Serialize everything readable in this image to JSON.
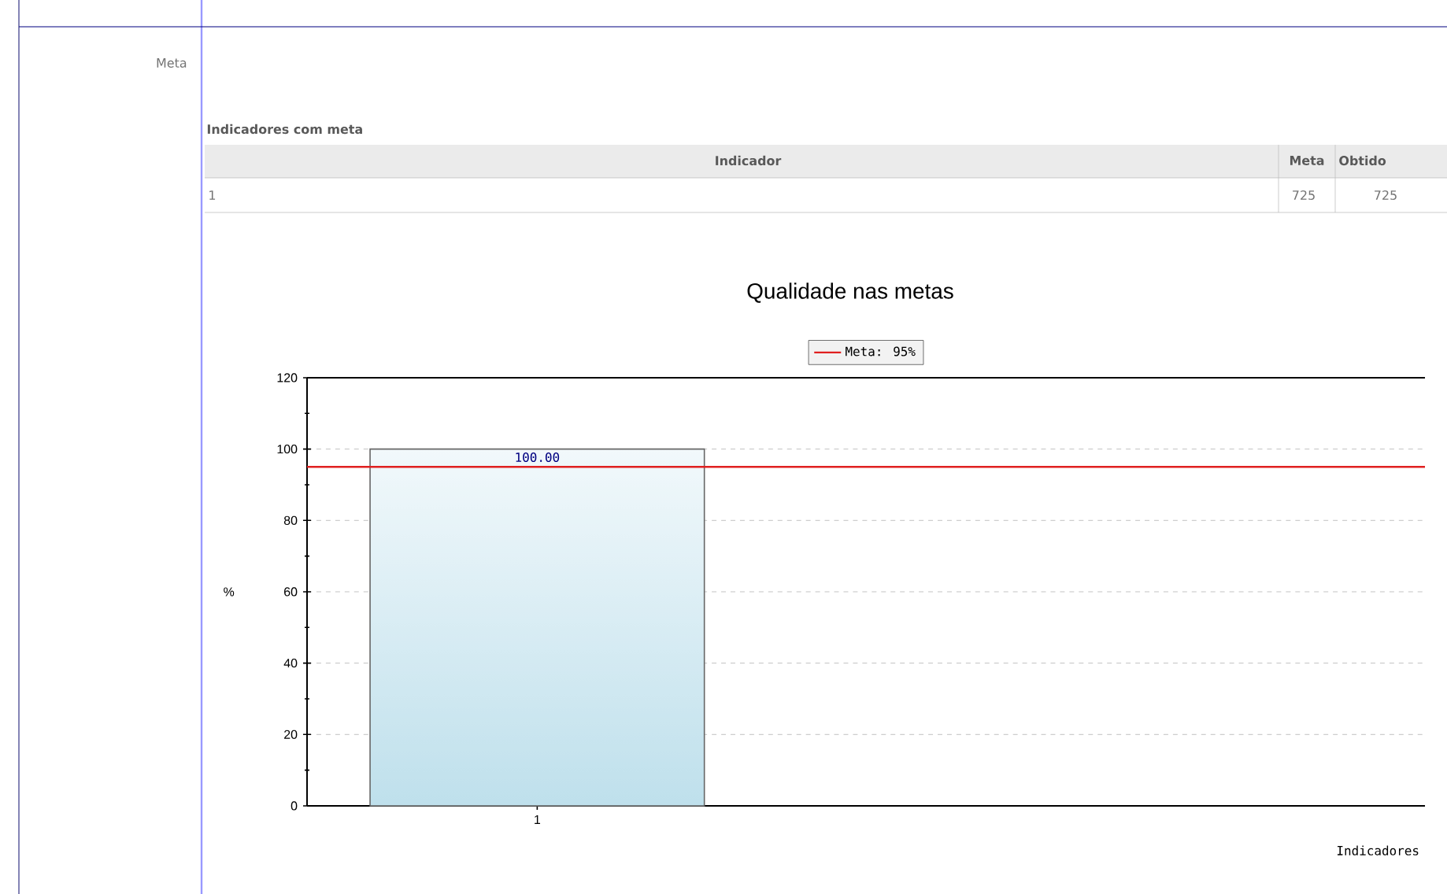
{
  "chart_data": {
    "type": "bar",
    "title": "Qualidade nas metas",
    "xlabel": "Indicadores",
    "ylabel": "%",
    "categories": [
      "1"
    ],
    "values": [
      100
    ],
    "color": "#bfe0ec",
    "value_labels": [
      "100.00"
    ],
    "ylim": [
      0,
      120
    ],
    "yticks": [
      0,
      20,
      40,
      60,
      80,
      100,
      120
    ],
    "grid": "y",
    "legend": "top",
    "ref_lines": [
      {
        "axis": "y",
        "value": 95,
        "label": "Meta: 95%",
        "color": "#e02020"
      }
    ],
    "annotations": [
      "Meta",
      "Indicadores com meta",
      "Indicador",
      "Meta",
      "Obtido",
      "1",
      "725",
      "725"
    ]
  }
}
